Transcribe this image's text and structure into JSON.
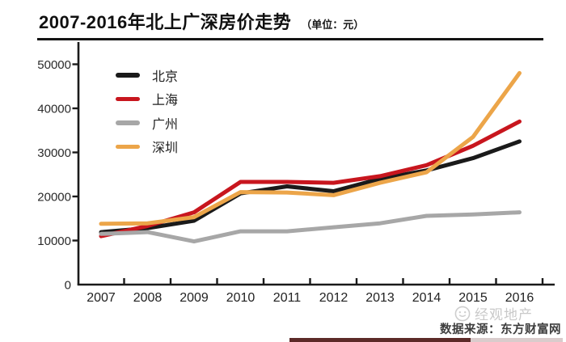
{
  "title": "2007-2016年北上广深房价走势",
  "title_unit": "（单位：元）",
  "source_note": "数据来源：东方财富网",
  "watermark": "经观地产",
  "colors": {
    "beijing": "#1a1a1a",
    "shanghai": "#c8161e",
    "guangzhou": "#a7a7a7",
    "shenzhen": "#eca549",
    "axis": "#1a1a1a",
    "bottom_bar": "#5c2a28"
  },
  "chart_data": {
    "type": "line",
    "title": "2007-2016年北上广深房价走势（单位：元）",
    "categories": [
      "2007",
      "2008",
      "2009",
      "2010",
      "2011",
      "2012",
      "2013",
      "2014",
      "2015",
      "2016"
    ],
    "series": [
      {
        "name": "北京",
        "color": "#1a1a1a",
        "values": [
          11900,
          12800,
          14500,
          20700,
          22300,
          21200,
          24000,
          25900,
          28700,
          32500
        ]
      },
      {
        "name": "上海",
        "color": "#c8161e",
        "values": [
          11000,
          13300,
          16400,
          23300,
          23300,
          23100,
          24600,
          27100,
          31500,
          37000
        ]
      },
      {
        "name": "广州",
        "color": "#a7a7a7",
        "values": [
          11500,
          11900,
          9800,
          12100,
          12100,
          13000,
          13900,
          15600,
          15900,
          16400
        ]
      },
      {
        "name": "深圳",
        "color": "#eca549",
        "values": [
          13800,
          13900,
          15300,
          21000,
          20900,
          20300,
          23100,
          25500,
          33500,
          48000
        ]
      }
    ],
    "xlabel": "",
    "ylabel": "",
    "ylim": [
      0,
      50000
    ],
    "y_ticks": [
      0,
      10000,
      20000,
      30000,
      40000,
      50000
    ],
    "grid": false,
    "legend_position": "inside-top-left"
  }
}
